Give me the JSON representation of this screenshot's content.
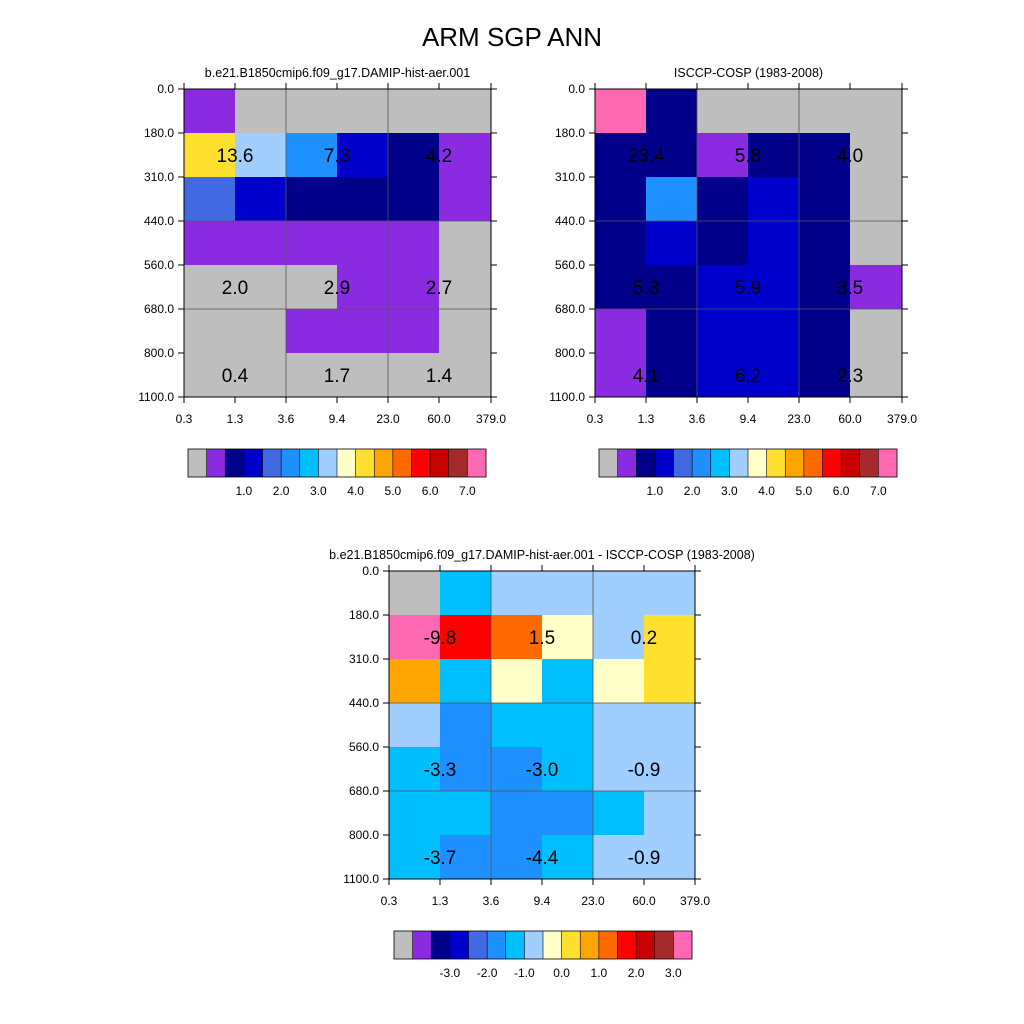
{
  "title": "ARM SGP ANN",
  "palette": [
    "#bebebe",
    "#8a2be2",
    "#00008b",
    "#0000cd",
    "#4169e1",
    "#1e90ff",
    "#00bfff",
    "#a0cfff",
    "#ffffc8",
    "#ffe02e",
    "#ffa500",
    "#ff6a00",
    "#ff0000",
    "#c80000",
    "#a52a2a",
    "#ff69b4"
  ],
  "chart_data": [
    {
      "type": "heatmap",
      "subtitle": "b.e21.B1850cmip6.f09_g17.DAMIP-hist-aer.001",
      "x_tick_labels": [
        "0.3",
        "1.3",
        "3.6",
        "9.4",
        "23.0",
        "60.0",
        "379.0"
      ],
      "y_tick_labels": [
        "0.0",
        "180.0",
        "310.0",
        "440.0",
        "560.0",
        "680.0",
        "800.0",
        "1100.0"
      ],
      "cells": [
        [
          1,
          0,
          0,
          0,
          0,
          0
        ],
        [
          9,
          7,
          5,
          3,
          2,
          1
        ],
        [
          4,
          3,
          2,
          2,
          2,
          1
        ],
        [
          1,
          1,
          1,
          1,
          1,
          0
        ],
        [
          0,
          0,
          0,
          1,
          1,
          0
        ],
        [
          0,
          0,
          1,
          1,
          1,
          0
        ],
        [
          0,
          0,
          0,
          0,
          0,
          0
        ]
      ],
      "annotations": [
        {
          "row": 1,
          "col": 0,
          "text": "13.6"
        },
        {
          "row": 1,
          "col": 2,
          "text": "7.3"
        },
        {
          "row": 1,
          "col": 4,
          "text": "4.2"
        },
        {
          "row": 4,
          "col": 0,
          "text": "2.0"
        },
        {
          "row": 4,
          "col": 2,
          "text": "2.9"
        },
        {
          "row": 4,
          "col": 4,
          "text": "2.7"
        },
        {
          "row": 6,
          "col": 0,
          "text": "0.4"
        },
        {
          "row": 6,
          "col": 2,
          "text": "1.7"
        },
        {
          "row": 6,
          "col": 4,
          "text": "1.4"
        }
      ],
      "colorbar_labels": [
        "1.0",
        "2.0",
        "3.0",
        "4.0",
        "5.0",
        "6.0",
        "7.0"
      ]
    },
    {
      "type": "heatmap",
      "subtitle": "ISCCP-COSP (1983-2008)",
      "x_tick_labels": [
        "0.3",
        "1.3",
        "3.6",
        "9.4",
        "23.0",
        "60.0",
        "379.0"
      ],
      "y_tick_labels": [
        "0.0",
        "180.0",
        "310.0",
        "440.0",
        "560.0",
        "680.0",
        "800.0",
        "1100.0"
      ],
      "cells": [
        [
          15,
          2,
          0,
          0,
          0,
          0
        ],
        [
          2,
          2,
          1,
          2,
          2,
          0
        ],
        [
          2,
          5,
          2,
          3,
          2,
          0
        ],
        [
          2,
          3,
          2,
          3,
          2,
          0
        ],
        [
          2,
          2,
          3,
          3,
          2,
          1
        ],
        [
          1,
          2,
          3,
          3,
          2,
          0
        ],
        [
          1,
          2,
          3,
          3,
          2,
          0
        ]
      ],
      "annotations": [
        {
          "row": 1,
          "col": 0,
          "text": "23.4"
        },
        {
          "row": 1,
          "col": 2,
          "text": "5.8"
        },
        {
          "row": 1,
          "col": 4,
          "text": "4.0"
        },
        {
          "row": 4,
          "col": 0,
          "text": "5.3"
        },
        {
          "row": 4,
          "col": 2,
          "text": "5.9"
        },
        {
          "row": 4,
          "col": 4,
          "text": "3.5"
        },
        {
          "row": 6,
          "col": 0,
          "text": "4.1"
        },
        {
          "row": 6,
          "col": 2,
          "text": "6.2"
        },
        {
          "row": 6,
          "col": 4,
          "text": "2.3"
        }
      ],
      "colorbar_labels": [
        "1.0",
        "2.0",
        "3.0",
        "4.0",
        "5.0",
        "6.0",
        "7.0"
      ]
    },
    {
      "type": "heatmap",
      "subtitle": "b.e21.B1850cmip6.f09_g17.DAMIP-hist-aer.001 - ISCCP-COSP (1983-2008)",
      "x_tick_labels": [
        "0.3",
        "1.3",
        "3.6",
        "9.4",
        "23.0",
        "60.0",
        "379.0"
      ],
      "y_tick_labels": [
        "0.0",
        "180.0",
        "310.0",
        "440.0",
        "560.0",
        "680.0",
        "800.0",
        "1100.0"
      ],
      "cells": [
        [
          0,
          6,
          7,
          7,
          7,
          7
        ],
        [
          15,
          12,
          11,
          8,
          7,
          9
        ],
        [
          10,
          6,
          8,
          6,
          8,
          9
        ],
        [
          7,
          5,
          6,
          6,
          7,
          7
        ],
        [
          6,
          5,
          5,
          6,
          7,
          7
        ],
        [
          6,
          6,
          5,
          5,
          6,
          7
        ],
        [
          6,
          5,
          5,
          6,
          7,
          7
        ]
      ],
      "annotations": [
        {
          "row": 1,
          "col": 0,
          "text": "-9.8"
        },
        {
          "row": 1,
          "col": 2,
          "text": "1.5"
        },
        {
          "row": 1,
          "col": 4,
          "text": "0.2"
        },
        {
          "row": 4,
          "col": 0,
          "text": "-3.3"
        },
        {
          "row": 4,
          "col": 2,
          "text": "-3.0"
        },
        {
          "row": 4,
          "col": 4,
          "text": "-0.9"
        },
        {
          "row": 6,
          "col": 0,
          "text": "-3.7"
        },
        {
          "row": 6,
          "col": 2,
          "text": "-4.4"
        },
        {
          "row": 6,
          "col": 4,
          "text": "-0.9"
        }
      ],
      "colorbar_labels": [
        "-3.0",
        "-2.0",
        "-1.0",
        "0.0",
        "1.0",
        "2.0",
        "3.0"
      ]
    }
  ]
}
